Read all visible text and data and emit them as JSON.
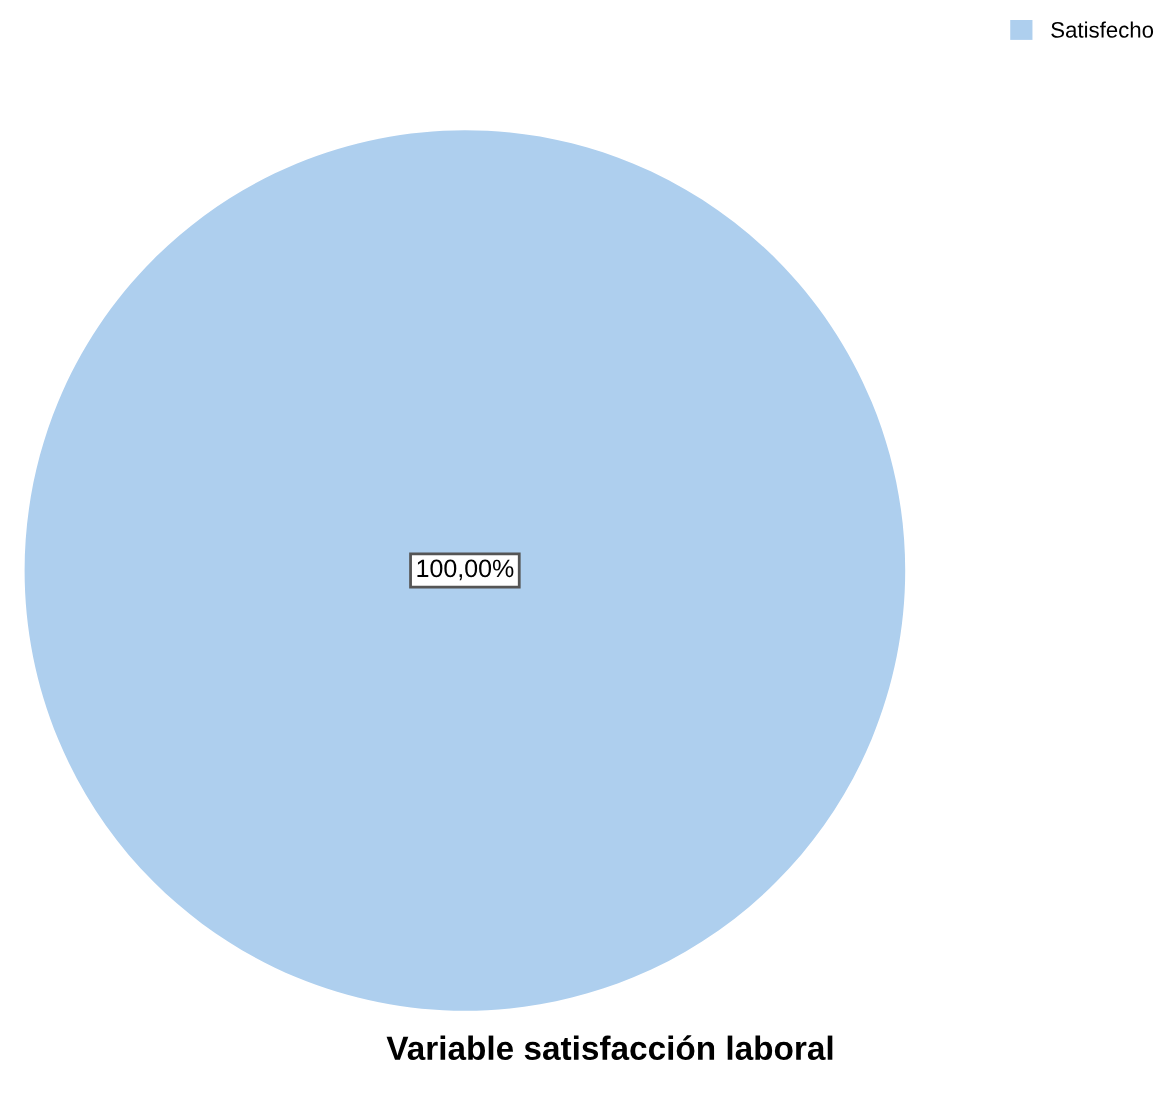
{
  "chart_data": {
    "type": "pie",
    "title": "Variable satisfacción laboral",
    "categories": [
      "Satisfecho"
    ],
    "values": [
      100
    ],
    "colors": [
      "#aecfee"
    ],
    "value_labels": [
      "100,00%"
    ],
    "legend": "top right"
  }
}
